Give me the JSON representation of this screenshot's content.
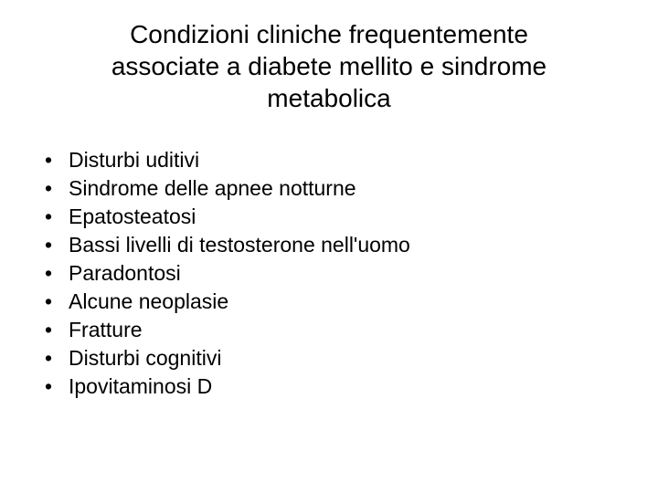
{
  "slide": {
    "title": "Condizioni cliniche frequentemente associate a diabete mellito e sindrome metabolica",
    "title_fontsize": 28,
    "body_fontsize": 23,
    "background_color": "#ffffff",
    "text_color": "#000000",
    "bullet_char": "•",
    "items": [
      "Disturbi uditivi",
      "Sindrome delle apnee notturne",
      "Epatosteatosi",
      "Bassi livelli di testosterone nell'uomo",
      "Paradontosi",
      "Alcune neoplasie",
      "Fratture",
      "Disturbi cognitivi",
      "Ipovitaminosi D"
    ]
  }
}
